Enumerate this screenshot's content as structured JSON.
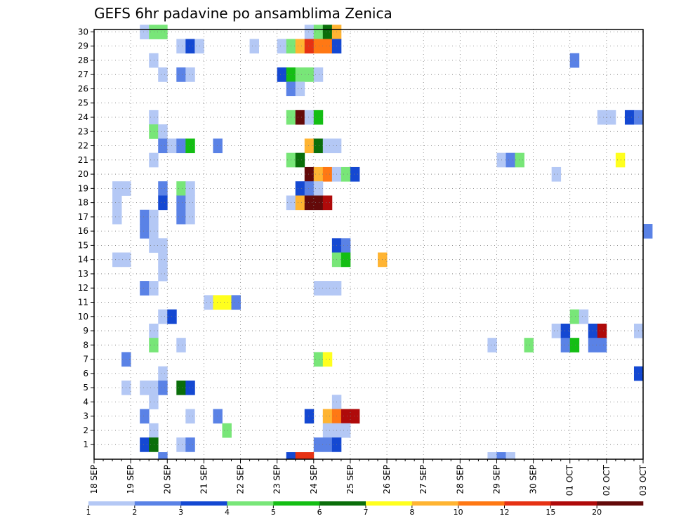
{
  "chart_data": {
    "type": "heatmap",
    "title": "GEFS 6hr padavine po ansamblima Zenica",
    "y_categories": [
      "1",
      "2",
      "3",
      "4",
      "5",
      "6",
      "7",
      "8",
      "9",
      "10",
      "11",
      "12",
      "13",
      "14",
      "15",
      "16",
      "17",
      "18",
      "19",
      "20",
      "21",
      "22",
      "23",
      "24",
      "25",
      "26",
      "27",
      "28",
      "29",
      "30"
    ],
    "x_tick_labels": [
      "18 SEP",
      "19 SEP",
      "20 SEP",
      "21 SEP",
      "22 SEP",
      "23 SEP",
      "24 SEP",
      "25 SEP",
      "26 SEP",
      "27 SEP",
      "28 SEP",
      "29 SEP",
      "30 SEP",
      "01 OCT",
      "02 OCT",
      "03 OCT"
    ],
    "steps_per_day": 4,
    "grid": true,
    "colorbar": {
      "levels": [
        "1",
        "2",
        "3",
        "4",
        "5",
        "6",
        "7",
        "8",
        "10",
        "12",
        "15",
        "20"
      ],
      "colors": [
        "#b4c8f5",
        "#5a82e6",
        "#1448d2",
        "#78e678",
        "#14be14",
        "#0a6e0a",
        "#ffff1e",
        "#ffb432",
        "#ff7814",
        "#e63214",
        "#af0a0a",
        "#640a0a"
      ]
    },
    "cells": [
      [
        30,
        5,
        1
      ],
      [
        30,
        6,
        4
      ],
      [
        30,
        7,
        4
      ],
      [
        30,
        23,
        1
      ],
      [
        30,
        24,
        4
      ],
      [
        30,
        25,
        6
      ],
      [
        30,
        26,
        8
      ],
      [
        29,
        9,
        1
      ],
      [
        29,
        10,
        3
      ],
      [
        29,
        11,
        1
      ],
      [
        29,
        17,
        1
      ],
      [
        29,
        20,
        1
      ],
      [
        29,
        21,
        4
      ],
      [
        29,
        22,
        8
      ],
      [
        29,
        23,
        10
      ],
      [
        29,
        24,
        9
      ],
      [
        29,
        25,
        9
      ],
      [
        29,
        26,
        3
      ],
      [
        28,
        6,
        1
      ],
      [
        28,
        52,
        2
      ],
      [
        27,
        7,
        1
      ],
      [
        27,
        9,
        2
      ],
      [
        27,
        10,
        1
      ],
      [
        27,
        20,
        3
      ],
      [
        27,
        21,
        5
      ],
      [
        27,
        22,
        4
      ],
      [
        27,
        23,
        4
      ],
      [
        27,
        24,
        1
      ],
      [
        26,
        21,
        2
      ],
      [
        26,
        22,
        1
      ],
      [
        24,
        6,
        1
      ],
      [
        24,
        21,
        4
      ],
      [
        24,
        22,
        12
      ],
      [
        24,
        23,
        1
      ],
      [
        24,
        24,
        5
      ],
      [
        24,
        55,
        1
      ],
      [
        24,
        56,
        1
      ],
      [
        24,
        58,
        3
      ],
      [
        24,
        59,
        2
      ],
      [
        23,
        6,
        4
      ],
      [
        23,
        7,
        1
      ],
      [
        22,
        7,
        2
      ],
      [
        22,
        8,
        1
      ],
      [
        22,
        9,
        2
      ],
      [
        22,
        10,
        5
      ],
      [
        22,
        13,
        2
      ],
      [
        22,
        23,
        8
      ],
      [
        22,
        24,
        6
      ],
      [
        22,
        25,
        1
      ],
      [
        22,
        26,
        1
      ],
      [
        21,
        6,
        1
      ],
      [
        21,
        21,
        4
      ],
      [
        21,
        22,
        6
      ],
      [
        21,
        44,
        1
      ],
      [
        21,
        45,
        2
      ],
      [
        21,
        46,
        4
      ],
      [
        21,
        57,
        7
      ],
      [
        20,
        23,
        12
      ],
      [
        20,
        24,
        8
      ],
      [
        20,
        25,
        9
      ],
      [
        20,
        26,
        1
      ],
      [
        20,
        27,
        4
      ],
      [
        20,
        28,
        3
      ],
      [
        20,
        50,
        1
      ],
      [
        19,
        2,
        1
      ],
      [
        19,
        3,
        1
      ],
      [
        19,
        7,
        2
      ],
      [
        19,
        9,
        4
      ],
      [
        19,
        10,
        1
      ],
      [
        19,
        22,
        3
      ],
      [
        19,
        23,
        2
      ],
      [
        19,
        24,
        1
      ],
      [
        18,
        2,
        1
      ],
      [
        18,
        7,
        3
      ],
      [
        18,
        9,
        2
      ],
      [
        18,
        10,
        1
      ],
      [
        18,
        21,
        1
      ],
      [
        18,
        22,
        8
      ],
      [
        18,
        23,
        12
      ],
      [
        18,
        24,
        12
      ],
      [
        18,
        25,
        11
      ],
      [
        17,
        2,
        1
      ],
      [
        17,
        5,
        2
      ],
      [
        17,
        6,
        1
      ],
      [
        17,
        9,
        2
      ],
      [
        17,
        10,
        1
      ],
      [
        16,
        5,
        2
      ],
      [
        16,
        6,
        1
      ],
      [
        16,
        60,
        2
      ],
      [
        15,
        6,
        1
      ],
      [
        15,
        7,
        1
      ],
      [
        15,
        26,
        3
      ],
      [
        15,
        27,
        2
      ],
      [
        14,
        2,
        1
      ],
      [
        14,
        3,
        1
      ],
      [
        14,
        7,
        1
      ],
      [
        14,
        26,
        4
      ],
      [
        14,
        27,
        5
      ],
      [
        14,
        31,
        8
      ],
      [
        13,
        7,
        1
      ],
      [
        12,
        5,
        2
      ],
      [
        12,
        6,
        1
      ],
      [
        12,
        24,
        1
      ],
      [
        12,
        25,
        1
      ],
      [
        12,
        26,
        1
      ],
      [
        11,
        12,
        1
      ],
      [
        11,
        13,
        7
      ],
      [
        11,
        14,
        7
      ],
      [
        11,
        15,
        2
      ],
      [
        10,
        7,
        1
      ],
      [
        10,
        8,
        3
      ],
      [
        10,
        52,
        4
      ],
      [
        10,
        53,
        1
      ],
      [
        9,
        6,
        1
      ],
      [
        9,
        50,
        1
      ],
      [
        9,
        51,
        3
      ],
      [
        9,
        54,
        3
      ],
      [
        9,
        55,
        11
      ],
      [
        9,
        59,
        1
      ],
      [
        8,
        6,
        4
      ],
      [
        8,
        9,
        1
      ],
      [
        8,
        43,
        1
      ],
      [
        8,
        47,
        4
      ],
      [
        8,
        51,
        2
      ],
      [
        8,
        52,
        5
      ],
      [
        8,
        54,
        2
      ],
      [
        8,
        55,
        2
      ],
      [
        7,
        3,
        2
      ],
      [
        7,
        24,
        4
      ],
      [
        7,
        25,
        7
      ],
      [
        6,
        7,
        1
      ],
      [
        6,
        59,
        3
      ],
      [
        5,
        3,
        1
      ],
      [
        5,
        5,
        1
      ],
      [
        5,
        6,
        1
      ],
      [
        5,
        7,
        2
      ],
      [
        5,
        9,
        6
      ],
      [
        5,
        10,
        3
      ],
      [
        4,
        6,
        1
      ],
      [
        4,
        26,
        1
      ],
      [
        3,
        5,
        2
      ],
      [
        3,
        10,
        1
      ],
      [
        3,
        13,
        2
      ],
      [
        3,
        23,
        3
      ],
      [
        3,
        25,
        8
      ],
      [
        3,
        26,
        9
      ],
      [
        3,
        27,
        11
      ],
      [
        3,
        28,
        11
      ],
      [
        2,
        6,
        1
      ],
      [
        2,
        14,
        4
      ],
      [
        2,
        25,
        1
      ],
      [
        2,
        26,
        1
      ],
      [
        2,
        27,
        1
      ],
      [
        1,
        5,
        3
      ],
      [
        1,
        6,
        6
      ],
      [
        1,
        9,
        1
      ],
      [
        1,
        10,
        2
      ],
      [
        1,
        24,
        2
      ],
      [
        1,
        25,
        2
      ],
      [
        1,
        26,
        3
      ]
    ],
    "bottom_strip": [
      [
        7,
        2
      ],
      [
        21,
        3
      ],
      [
        22,
        10
      ],
      [
        23,
        10
      ],
      [
        43,
        1
      ],
      [
        44,
        2
      ],
      [
        45,
        1
      ]
    ]
  }
}
